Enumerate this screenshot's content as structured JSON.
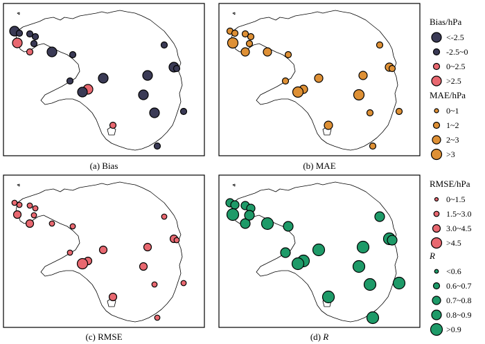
{
  "panels": [
    {
      "id": "bias",
      "caption": "(a) Bias"
    },
    {
      "id": "mae",
      "caption": "(b) MAE"
    },
    {
      "id": "rmse",
      "caption": "(c) RMSE"
    },
    {
      "id": "r",
      "caption_prefix": "(d) ",
      "caption_var": "R"
    }
  ],
  "legends": {
    "bias": {
      "title": "Bias/hPa",
      "items": [
        "<-2.5",
        "-2.5~0",
        "0~2.5",
        ">2.5"
      ],
      "colors": [
        "#3a3a55",
        "#3a3a55",
        "#e86870",
        "#e86870"
      ]
    },
    "mae": {
      "title": "MAE/hPa",
      "items": [
        "0~1",
        "1~2",
        "2~3",
        ">3"
      ],
      "color": "#de9035"
    },
    "rmse": {
      "title": "RMSE/hPa",
      "items": [
        "0~1.5",
        "1.5~3.0",
        "3.0~4.5",
        ">4.5"
      ],
      "color": "#e86870"
    },
    "r": {
      "title": "R",
      "items": [
        "<0.6",
        "0.6~0.7",
        "0.7~0.8",
        "0.8~0.9",
        ">0.9"
      ],
      "color": "#1e9a68"
    }
  },
  "stations": {
    "bias": [
      {
        "c": 3,
        "cls": 0
      },
      {
        "c": 1,
        "cls": 1
      },
      {
        "c": 2,
        "cls": 1
      },
      {
        "c": 0,
        "cls": 3
      },
      {
        "c": 4,
        "cls": 2
      },
      {
        "c": 5,
        "cls": 1
      },
      {
        "c": 6,
        "cls": 1
      },
      {
        "c": 7,
        "cls": 0
      },
      {
        "c": 8,
        "cls": 1
      },
      {
        "c": 9,
        "cls": 1
      },
      {
        "c": 10,
        "cls": 0
      },
      {
        "c": 11,
        "cls": 1
      },
      {
        "c": 12,
        "cls": 0
      },
      {
        "c": 13,
        "cls": 0
      },
      {
        "c": 14,
        "cls": 3
      },
      {
        "c": 15,
        "cls": 1
      },
      {
        "c": 16,
        "cls": 0
      },
      {
        "c": 17,
        "cls": 0
      },
      {
        "c": 18,
        "cls": 2
      },
      {
        "c": 19,
        "cls": 0
      },
      {
        "c": 20,
        "cls": 1
      },
      {
        "c": 21,
        "cls": 1
      }
    ],
    "mae": [
      {
        "c": 3,
        "cls": 1
      },
      {
        "c": 1,
        "cls": 1
      },
      {
        "c": 2,
        "cls": 1
      },
      {
        "c": 0,
        "cls": 3
      },
      {
        "c": 4,
        "cls": 2
      },
      {
        "c": 5,
        "cls": 1
      },
      {
        "c": 6,
        "cls": 1
      },
      {
        "c": 7,
        "cls": 2
      },
      {
        "c": 8,
        "cls": 1
      },
      {
        "c": 9,
        "cls": 1
      },
      {
        "c": 10,
        "cls": 2
      },
      {
        "c": 11,
        "cls": 1
      },
      {
        "c": 12,
        "cls": 2
      },
      {
        "c": 13,
        "cls": 2
      },
      {
        "c": 14,
        "cls": 2
      },
      {
        "c": 15,
        "cls": 1
      },
      {
        "c": 16,
        "cls": 3
      },
      {
        "c": 17,
        "cls": 3
      },
      {
        "c": 18,
        "cls": 2
      },
      {
        "c": 19,
        "cls": 1
      },
      {
        "c": 20,
        "cls": 1
      },
      {
        "c": 21,
        "cls": 1
      }
    ],
    "rmse": [
      {
        "c": 3,
        "cls": 1
      },
      {
        "c": 1,
        "cls": 1
      },
      {
        "c": 2,
        "cls": 1
      },
      {
        "c": 0,
        "cls": 2
      },
      {
        "c": 4,
        "cls": 2
      },
      {
        "c": 5,
        "cls": 1
      },
      {
        "c": 6,
        "cls": 1
      },
      {
        "c": 7,
        "cls": 1
      },
      {
        "c": 8,
        "cls": 1
      },
      {
        "c": 9,
        "cls": 1
      },
      {
        "c": 10,
        "cls": 2
      },
      {
        "c": 11,
        "cls": 1
      },
      {
        "c": 12,
        "cls": 2
      },
      {
        "c": 13,
        "cls": 2
      },
      {
        "c": 14,
        "cls": 2
      },
      {
        "c": 15,
        "cls": 1
      },
      {
        "c": 16,
        "cls": 3
      },
      {
        "c": 17,
        "cls": 2
      },
      {
        "c": 18,
        "cls": 2
      },
      {
        "c": 19,
        "cls": 1
      },
      {
        "c": 20,
        "cls": 1
      },
      {
        "c": 21,
        "cls": 1
      }
    ],
    "r": [
      {
        "c": 3,
        "cls": 2
      },
      {
        "c": 1,
        "cls": 2
      },
      {
        "c": 2,
        "cls": 2
      },
      {
        "c": 0,
        "cls": 4
      },
      {
        "c": 4,
        "cls": 3
      },
      {
        "c": 5,
        "cls": 2
      },
      {
        "c": 6,
        "cls": 3
      },
      {
        "c": 7,
        "cls": 4
      },
      {
        "c": 8,
        "cls": 3
      },
      {
        "c": 9,
        "cls": 3
      },
      {
        "c": 10,
        "cls": 4
      },
      {
        "c": 11,
        "cls": 3
      },
      {
        "c": 12,
        "cls": 4
      },
      {
        "c": 13,
        "cls": 4
      },
      {
        "c": 14,
        "cls": 4
      },
      {
        "c": 15,
        "cls": 3
      },
      {
        "c": 16,
        "cls": 4
      },
      {
        "c": 17,
        "cls": 4
      },
      {
        "c": 18,
        "cls": 4
      },
      {
        "c": 19,
        "cls": 4
      },
      {
        "c": 20,
        "cls": 4
      },
      {
        "c": 21,
        "cls": 4
      }
    ]
  }
}
